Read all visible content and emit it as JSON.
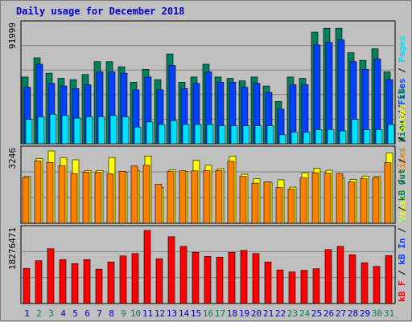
{
  "title": "Daily usage for December 2018",
  "colors": {
    "hits": "#00805c",
    "files": "#0040ff",
    "pages": "#00e0ff",
    "visits": "#ffff00",
    "sites": "#ff8000",
    "kbin": "#ff0000",
    "kbout": "#ff0000",
    "weekday": "#0000c0",
    "weekend": "#00805c"
  },
  "chart_data": [
    {
      "type": "bar",
      "name": "hits-files-pages",
      "y_tick_label": "91999",
      "ylim": [
        0,
        91999
      ],
      "legend": [
        "Hits",
        "Files",
        "Pages"
      ],
      "legend_colors": [
        "hits",
        "files",
        "pages"
      ],
      "series": [
        {
          "key": "hits",
          "values": [
            52000,
            67000,
            55000,
            51000,
            50000,
            54000,
            64000,
            64000,
            60000,
            48000,
            58000,
            50000,
            70000,
            48000,
            52000,
            62000,
            52000,
            51000,
            49000,
            52000,
            45000,
            33000,
            52000,
            51000,
            87000,
            90000,
            90000,
            71000,
            65000,
            74000,
            56000
          ]
        },
        {
          "key": "files",
          "values": [
            44000,
            62000,
            47000,
            45000,
            43000,
            46000,
            56000,
            56000,
            55000,
            42000,
            52000,
            42000,
            61000,
            43000,
            47000,
            56000,
            48000,
            48000,
            44000,
            47000,
            40000,
            27000,
            46000,
            46000,
            77000,
            79000,
            81000,
            64000,
            58000,
            66000,
            50000
          ]
        },
        {
          "key": "pages",
          "values": [
            19000,
            21000,
            23000,
            22000,
            20000,
            21000,
            21000,
            22000,
            21000,
            13000,
            17000,
            15000,
            18000,
            15000,
            15000,
            15000,
            14000,
            14000,
            14000,
            14000,
            14000,
            7000,
            9000,
            9000,
            11000,
            11000,
            10000,
            19000,
            11000,
            11000,
            15000
          ]
        }
      ]
    },
    {
      "type": "bar",
      "name": "visits-sites",
      "y_tick_label": "3246",
      "ylim": [
        0,
        3246
      ],
      "legend": [
        "Visits",
        "Sites",
        "Out",
        "kB"
      ],
      "legend_colors": [
        "visits",
        "sites",
        "hits",
        "hits"
      ],
      "series": [
        {
          "key": "visits",
          "values": [
            2100,
            2900,
            3246,
            2950,
            2850,
            2370,
            2370,
            2950,
            2280,
            2370,
            3020,
            1600,
            2400,
            2330,
            2820,
            2600,
            2450,
            3020,
            2200,
            2000,
            1850,
            1950,
            1620,
            2270,
            2470,
            2380,
            2030,
            1970,
            2120,
            2100,
            3150
          ]
        },
        {
          "key": "sites",
          "values": [
            2050,
            2800,
            2730,
            2580,
            2230,
            2300,
            2280,
            2220,
            2330,
            2570,
            2600,
            1750,
            2320,
            2360,
            2350,
            2360,
            2370,
            2780,
            2100,
            1800,
            1850,
            1600,
            1520,
            2030,
            2270,
            2240,
            2230,
            1850,
            2000,
            2050,
            2720
          ]
        }
      ]
    },
    {
      "type": "bar",
      "name": "kbytes",
      "y_tick_label": "18276471",
      "ylim": [
        0,
        18276471
      ],
      "legend": [
        "kB F",
        "kB In",
        "/",
        "kB Out",
        "/",
        "Sites"
      ],
      "legend_colors": [
        "kbin",
        "files",
        "pages",
        "hits",
        "pages",
        "visits"
      ],
      "series": [
        {
          "key": "kbin",
          "values": [
            8800,
            10700,
            13700,
            11000,
            10000,
            11000,
            8600,
            10400,
            11900,
            12500,
            18276,
            11200,
            16700,
            14300,
            12800,
            11800,
            11600,
            12800,
            13300,
            12500,
            10400,
            8400,
            7900,
            8300,
            8700,
            13500,
            14300,
            12200,
            10200,
            9300,
            12000
          ]
        }
      ]
    }
  ],
  "x_axis": {
    "days": [
      "1",
      "2",
      "3",
      "4",
      "5",
      "6",
      "7",
      "8",
      "9",
      "10",
      "11",
      "12",
      "13",
      "14",
      "15",
      "16",
      "17",
      "18",
      "19",
      "20",
      "21",
      "22",
      "23",
      "24",
      "25",
      "26",
      "27",
      "28",
      "29",
      "30",
      "31"
    ],
    "weekend": [
      1,
      2,
      8,
      9,
      15,
      16,
      22,
      23,
      29,
      30
    ]
  }
}
